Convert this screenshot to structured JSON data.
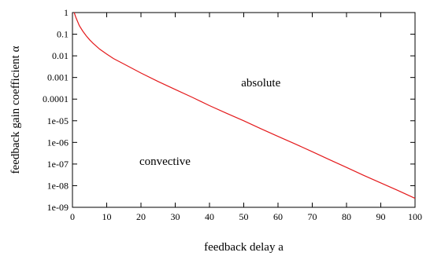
{
  "chart_data": {
    "type": "line",
    "xlabel": "feedback delay a",
    "ylabel": "feedback gain coefficient  α",
    "xlim": [
      0,
      100
    ],
    "ylim": [
      1e-09,
      1
    ],
    "y_scale": "log",
    "grid": false,
    "x_ticks": [
      {
        "value": 0,
        "label": "0"
      },
      {
        "value": 10,
        "label": "10"
      },
      {
        "value": 20,
        "label": "20"
      },
      {
        "value": 30,
        "label": "30"
      },
      {
        "value": 40,
        "label": "40"
      },
      {
        "value": 50,
        "label": "50"
      },
      {
        "value": 60,
        "label": "60"
      },
      {
        "value": 70,
        "label": "70"
      },
      {
        "value": 80,
        "label": "80"
      },
      {
        "value": 90,
        "label": "90"
      },
      {
        "value": 100,
        "label": "100"
      }
    ],
    "y_ticks": [
      {
        "value": 1,
        "label": "1"
      },
      {
        "value": 0.1,
        "label": "0.1"
      },
      {
        "value": 0.01,
        "label": "0.01"
      },
      {
        "value": 0.001,
        "label": "0.001"
      },
      {
        "value": 0.0001,
        "label": "0.0001"
      },
      {
        "value": 1e-05,
        "label": "1e-05"
      },
      {
        "value": 1e-06,
        "label": "1e-06"
      },
      {
        "value": 1e-07,
        "label": "1e-07"
      },
      {
        "value": 1e-08,
        "label": "1e-08"
      },
      {
        "value": 1e-09,
        "label": "1e-09"
      }
    ],
    "annotations": [
      {
        "text": "absolute",
        "x": 55,
        "y": 0.0006
      },
      {
        "text": "convective",
        "x": 27,
        "y": 1.4e-07
      }
    ],
    "series": [
      {
        "color": "#e41a1c",
        "points": [
          [
            0.5,
            1.0
          ],
          [
            1,
            0.6
          ],
          [
            2,
            0.25
          ],
          [
            3,
            0.14
          ],
          [
            4,
            0.085
          ],
          [
            5,
            0.055
          ],
          [
            6,
            0.038
          ],
          [
            8,
            0.02
          ],
          [
            10,
            0.012
          ],
          [
            12,
            0.0075
          ],
          [
            15,
            0.0042
          ],
          [
            20,
            0.0016
          ],
          [
            25,
            0.00065
          ],
          [
            30,
            0.00028
          ],
          [
            35,
            0.00012
          ],
          [
            40,
            5e-05
          ],
          [
            45,
            2.2e-05
          ],
          [
            50,
            1e-05
          ],
          [
            55,
            4.3e-06
          ],
          [
            60,
            1.9e-06
          ],
          [
            65,
            8.5e-07
          ],
          [
            70,
            3.7e-07
          ],
          [
            75,
            1.6e-07
          ],
          [
            80,
            7e-08
          ],
          [
            85,
            3e-08
          ],
          [
            90,
            1.35e-08
          ],
          [
            95,
            6e-09
          ],
          [
            100,
            2.6e-09
          ]
        ]
      }
    ]
  }
}
